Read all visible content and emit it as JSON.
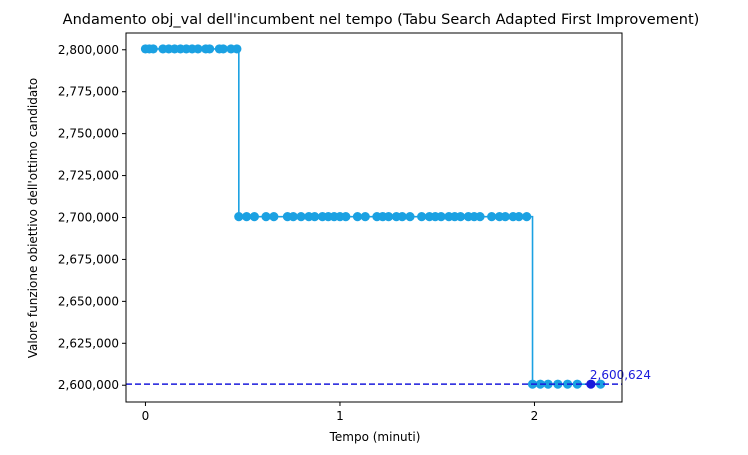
{
  "chart_data": {
    "type": "line",
    "title": "Andamento obj_val dell'incumbent nel tempo (Tabu Search Adapted First Improvement)",
    "xlabel": "Tempo (minuti)",
    "ylabel": "Valore funzione obiettivo dell'ottimo candidato",
    "xlim": [
      -0.1,
      2.45
    ],
    "ylim": [
      2590000,
      2810000
    ],
    "x_ticks": [
      0,
      1,
      2
    ],
    "x_tick_labels": [
      "0",
      "1",
      "2"
    ],
    "y_ticks": [
      2600000,
      2625000,
      2650000,
      2675000,
      2700000,
      2725000,
      2750000,
      2775000,
      2800000
    ],
    "y_tick_labels": [
      "2,600,000",
      "2,625,000",
      "2,650,000",
      "2,675,000",
      "2,700,000",
      "2,725,000",
      "2,750,000",
      "2,775,000",
      "2,800,000"
    ],
    "grid": false,
    "step": true,
    "series": [
      {
        "color": "#1ba1e2",
        "points": [
          {
            "x": 0.0,
            "y": 2800500
          },
          {
            "x": 0.02,
            "y": 2800500
          },
          {
            "x": 0.04,
            "y": 2800500
          },
          {
            "x": 0.09,
            "y": 2800500
          },
          {
            "x": 0.12,
            "y": 2800500
          },
          {
            "x": 0.15,
            "y": 2800500
          },
          {
            "x": 0.18,
            "y": 2800500
          },
          {
            "x": 0.21,
            "y": 2800500
          },
          {
            "x": 0.24,
            "y": 2800500
          },
          {
            "x": 0.27,
            "y": 2800500
          },
          {
            "x": 0.31,
            "y": 2800500
          },
          {
            "x": 0.33,
            "y": 2800500
          },
          {
            "x": 0.38,
            "y": 2800500
          },
          {
            "x": 0.4,
            "y": 2800500
          },
          {
            "x": 0.44,
            "y": 2800500
          },
          {
            "x": 0.47,
            "y": 2800500
          },
          {
            "x": 0.48,
            "y": 2700500
          },
          {
            "x": 0.52,
            "y": 2700500
          },
          {
            "x": 0.56,
            "y": 2700500
          },
          {
            "x": 0.62,
            "y": 2700500
          },
          {
            "x": 0.66,
            "y": 2700500
          },
          {
            "x": 0.73,
            "y": 2700500
          },
          {
            "x": 0.76,
            "y": 2700500
          },
          {
            "x": 0.8,
            "y": 2700500
          },
          {
            "x": 0.84,
            "y": 2700500
          },
          {
            "x": 0.87,
            "y": 2700500
          },
          {
            "x": 0.91,
            "y": 2700500
          },
          {
            "x": 0.94,
            "y": 2700500
          },
          {
            "x": 0.97,
            "y": 2700500
          },
          {
            "x": 1.0,
            "y": 2700500
          },
          {
            "x": 1.03,
            "y": 2700500
          },
          {
            "x": 1.09,
            "y": 2700500
          },
          {
            "x": 1.13,
            "y": 2700500
          },
          {
            "x": 1.19,
            "y": 2700500
          },
          {
            "x": 1.22,
            "y": 2700500
          },
          {
            "x": 1.25,
            "y": 2700500
          },
          {
            "x": 1.29,
            "y": 2700500
          },
          {
            "x": 1.32,
            "y": 2700500
          },
          {
            "x": 1.36,
            "y": 2700500
          },
          {
            "x": 1.42,
            "y": 2700500
          },
          {
            "x": 1.46,
            "y": 2700500
          },
          {
            "x": 1.49,
            "y": 2700500
          },
          {
            "x": 1.52,
            "y": 2700500
          },
          {
            "x": 1.56,
            "y": 2700500
          },
          {
            "x": 1.59,
            "y": 2700500
          },
          {
            "x": 1.62,
            "y": 2700500
          },
          {
            "x": 1.66,
            "y": 2700500
          },
          {
            "x": 1.69,
            "y": 2700500
          },
          {
            "x": 1.72,
            "y": 2700500
          },
          {
            "x": 1.78,
            "y": 2700500
          },
          {
            "x": 1.82,
            "y": 2700500
          },
          {
            "x": 1.85,
            "y": 2700500
          },
          {
            "x": 1.89,
            "y": 2700500
          },
          {
            "x": 1.92,
            "y": 2700500
          },
          {
            "x": 1.96,
            "y": 2700500
          },
          {
            "x": 1.99,
            "y": 2600624
          },
          {
            "x": 2.03,
            "y": 2600624
          },
          {
            "x": 2.07,
            "y": 2600624
          },
          {
            "x": 2.12,
            "y": 2600624
          },
          {
            "x": 2.17,
            "y": 2600624
          },
          {
            "x": 2.22,
            "y": 2600624
          },
          {
            "x": 2.34,
            "y": 2600624
          }
        ]
      }
    ],
    "best_point": {
      "x": 2.29,
      "y": 2600624,
      "color": "#1a1adb"
    },
    "reference_line": {
      "y": 2600624,
      "style": "dashed",
      "color": "#1a1adb"
    },
    "annotations": [
      {
        "text": "2,600,624",
        "x": 2.29,
        "y": 2600624,
        "color": "#1a1adb"
      }
    ]
  }
}
